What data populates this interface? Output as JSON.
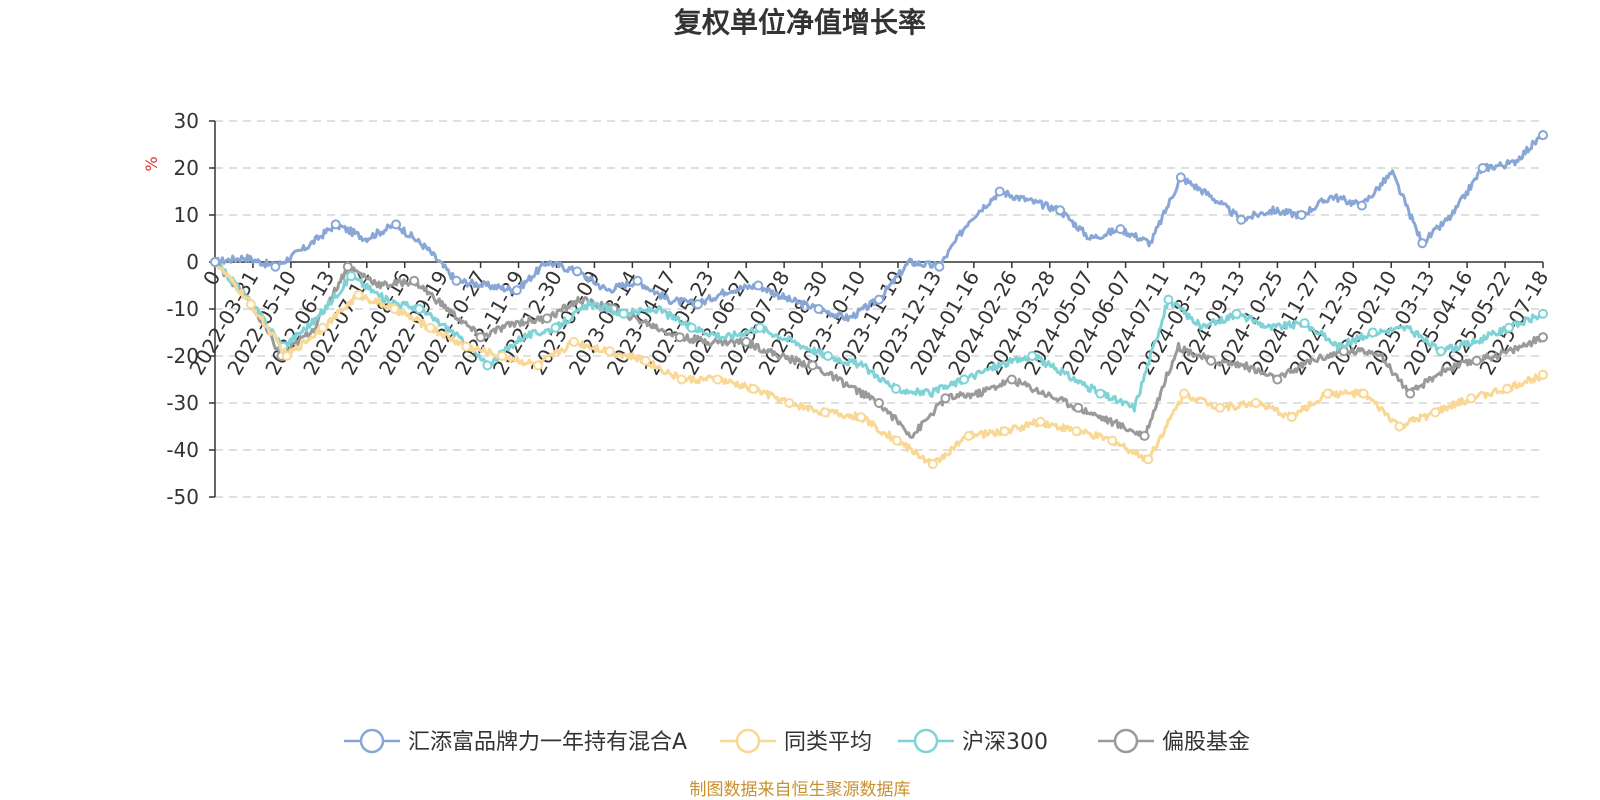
{
  "chart_data": {
    "type": "line",
    "title": "复权单位净值增长率",
    "ylabel": "%",
    "ylim": [
      -50,
      30
    ],
    "yticks": [
      "30",
      "20",
      "10",
      "0",
      "-10",
      "-20",
      "-30",
      "-40",
      "-50"
    ],
    "xticks": [
      "0",
      "2022-03-31",
      "2022-05-10",
      "2022-06-13",
      "2022-07-14",
      "2022-08-16",
      "2022-09-19",
      "2022-10-27",
      "2022-11-29",
      "2022-12-30",
      "2023-02-09",
      "2023-03-14",
      "2023-04-17",
      "2023-05-23",
      "2023-06-27",
      "2023-07-28",
      "2023-08-30",
      "2023-10-10",
      "2023-11-10",
      "2023-12-13",
      "2024-01-16",
      "2024-02-26",
      "2024-03-28",
      "2024-05-07",
      "2024-06-07",
      "2024-07-11",
      "2024-08-13",
      "2024-09-13",
      "2024-10-25",
      "2024-11-27",
      "2024-12-30",
      "2025-02-10",
      "2025-03-13",
      "2025-04-16",
      "2025-05-22",
      "2025-07-18"
    ],
    "grid": true,
    "legend_position": "bottom",
    "series": [
      {
        "name": "汇添富品牌力一年持有混合A",
        "color": "#88a7d6",
        "values": [
          0,
          1,
          -1,
          3,
          8,
          5,
          8,
          3,
          -4,
          -5,
          -6,
          0,
          -2,
          -6,
          -4,
          -8,
          -9,
          -6,
          -5,
          -8,
          -10,
          -12,
          -8,
          0,
          -1,
          9,
          15,
          13,
          11,
          5,
          7,
          4,
          18,
          14,
          9,
          11,
          10,
          14,
          12,
          19,
          4,
          10,
          20,
          21,
          27
        ]
      },
      {
        "name": "同类平均",
        "color": "#f9d794",
        "values": [
          0,
          -9,
          -20,
          -14,
          -7,
          -10,
          -14,
          -18,
          -20,
          -22,
          -17,
          -19,
          -21,
          -25,
          -25,
          -27,
          -30,
          -32,
          -33,
          -38,
          -43,
          -37,
          -36,
          -34,
          -36,
          -38,
          -42,
          -28,
          -31,
          -30,
          -33,
          -28,
          -28,
          -35,
          -32,
          -29,
          -27,
          -24
        ]
      },
      {
        "name": "沪深300",
        "color": "#7fd3d6",
        "values": [
          0,
          -8,
          -18,
          -12,
          -3,
          -8,
          -10,
          -15,
          -22,
          -16,
          -14,
          -9,
          -11,
          -10,
          -14,
          -16,
          -14,
          -17,
          -20,
          -22,
          -27,
          -28,
          -25,
          -22,
          -20,
          -24,
          -28,
          -31,
          -8,
          -14,
          -11,
          -14,
          -13,
          -18,
          -15,
          -14,
          -19,
          -17,
          -14,
          -11
        ]
      },
      {
        "name": "偏股基金",
        "color": "#9a9a9a",
        "values": [
          0,
          -8,
          -20,
          -14,
          -1,
          -5,
          -4,
          -10,
          -16,
          -13,
          -12,
          -8,
          -10,
          -13,
          -16,
          -17,
          -17,
          -20,
          -22,
          -26,
          -30,
          -37,
          -29,
          -28,
          -25,
          -28,
          -31,
          -34,
          -37,
          -18,
          -21,
          -22,
          -25,
          -21,
          -19,
          -19,
          -28,
          -23,
          -21,
          -19,
          -16
        ]
      }
    ]
  },
  "source_note": "制图数据来自恒生聚源数据库"
}
